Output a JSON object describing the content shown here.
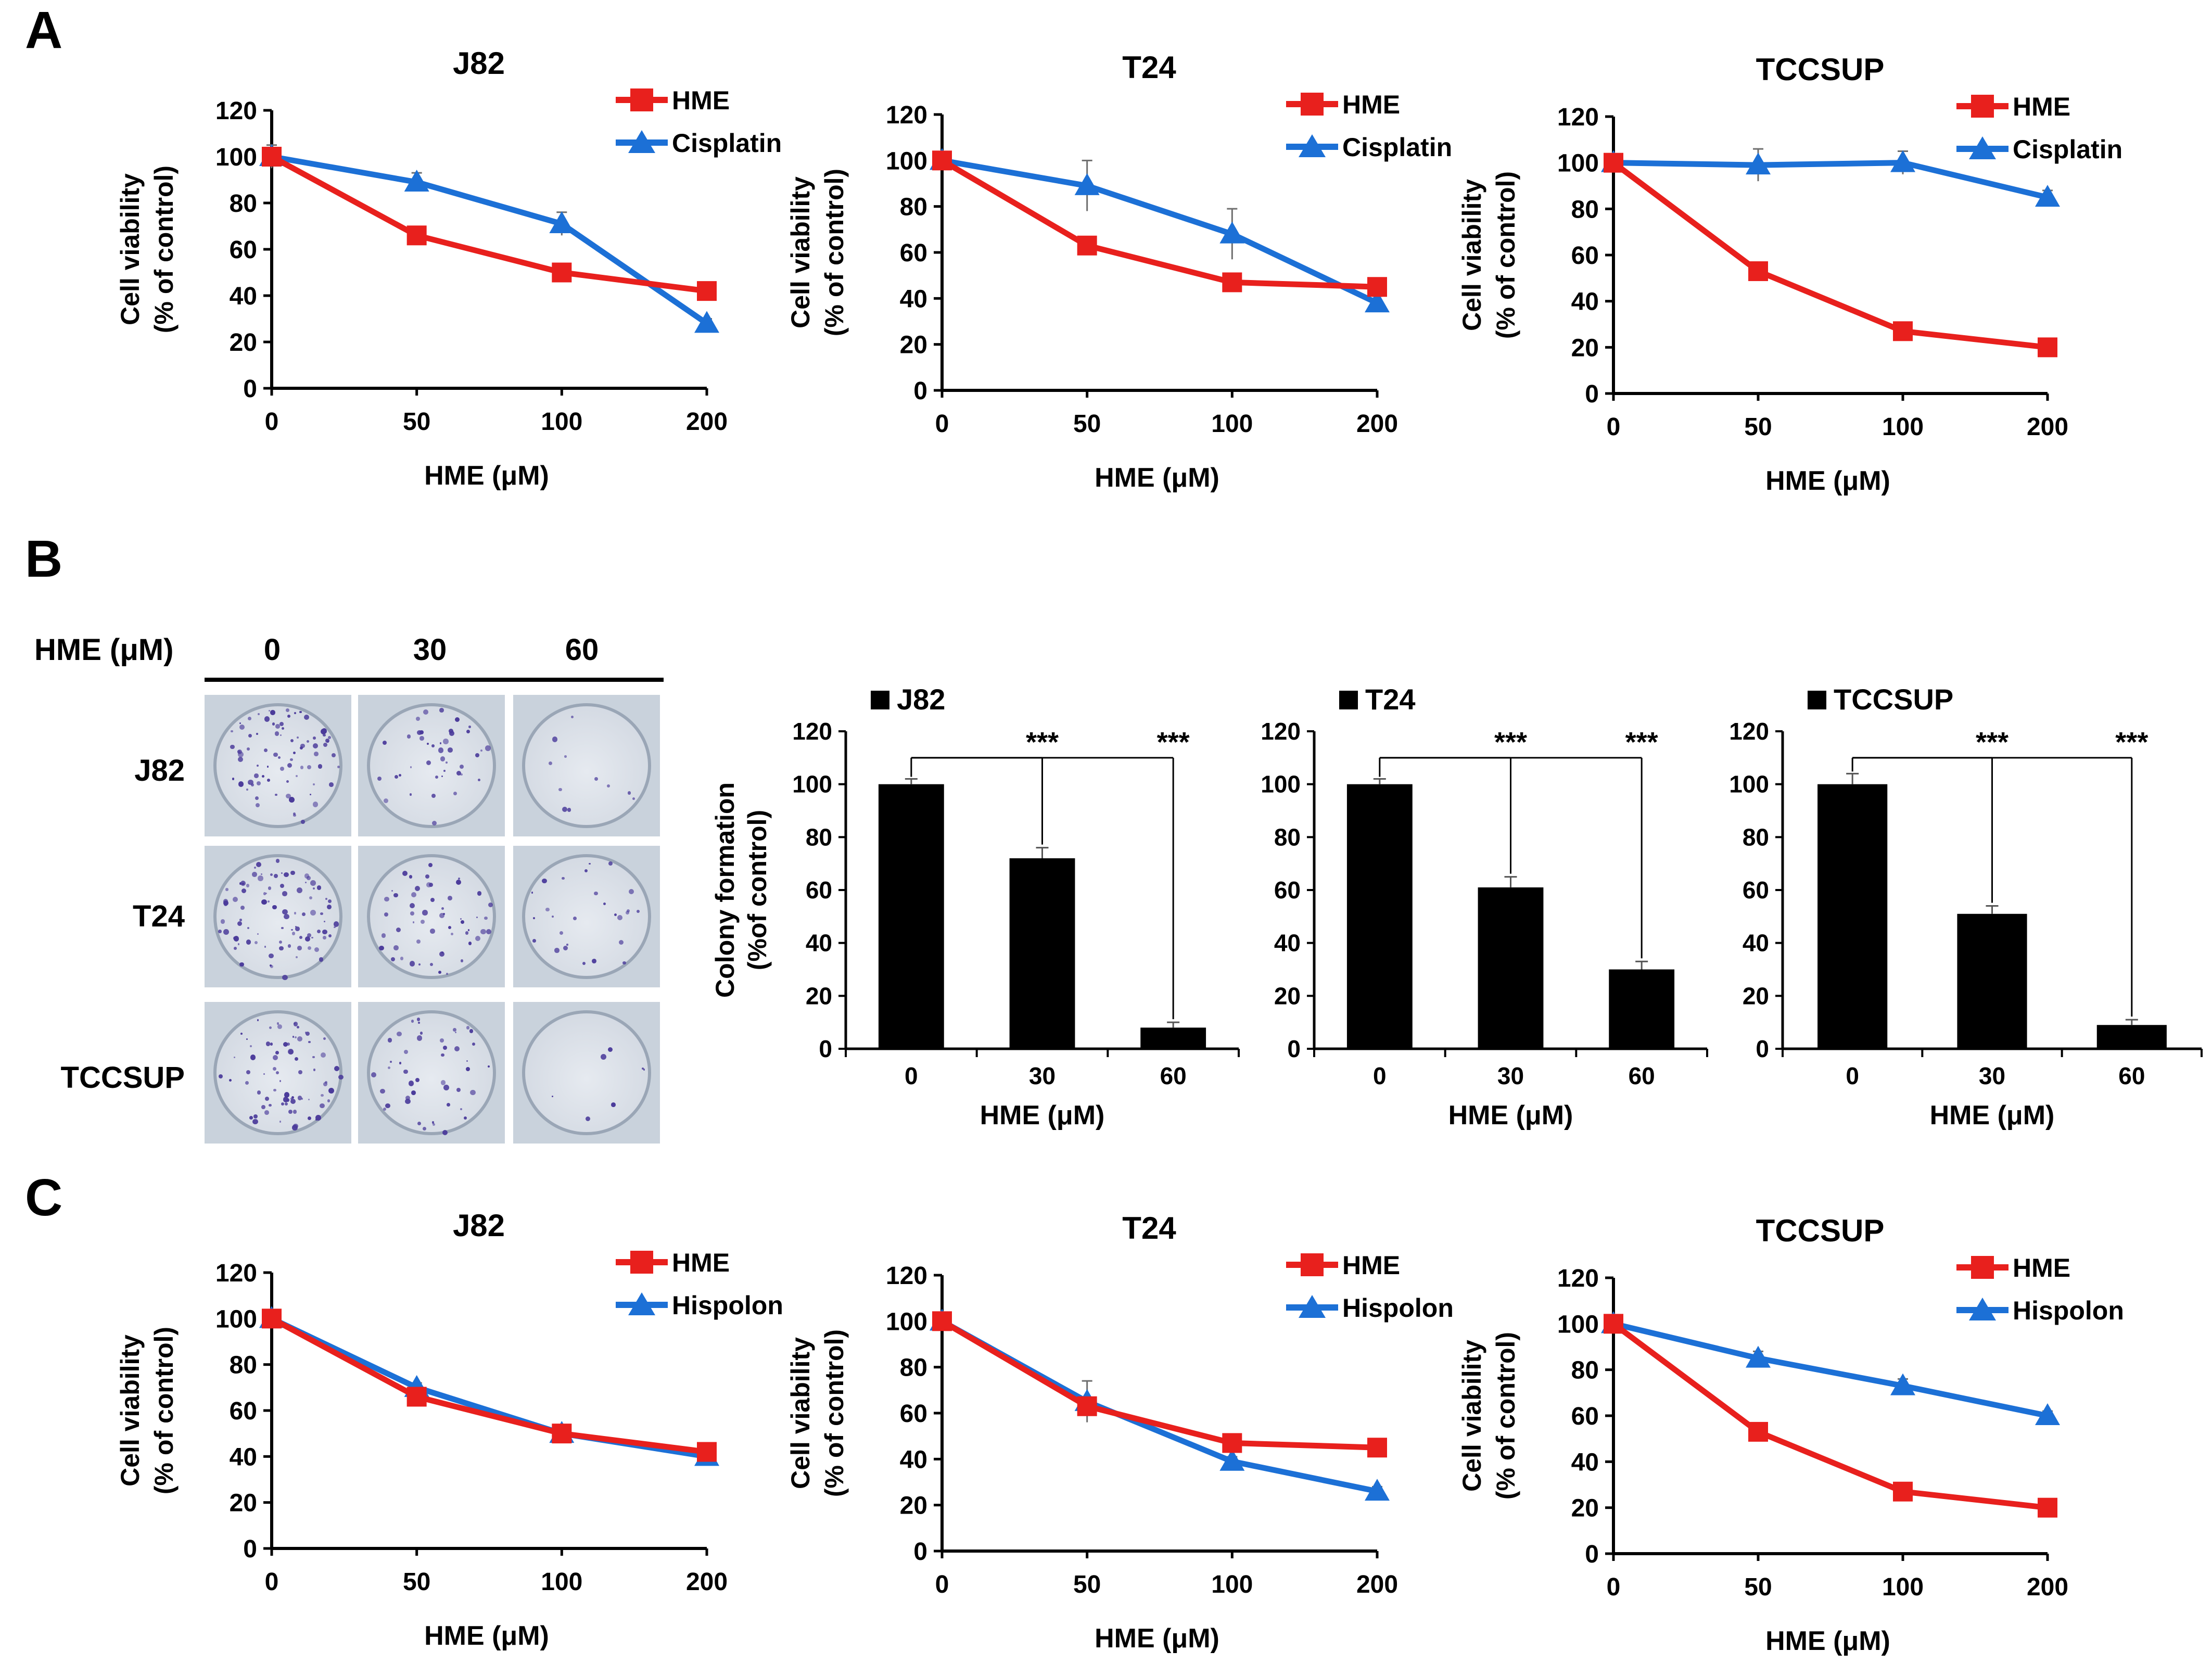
{
  "panel_labels": {
    "a": "A",
    "b": "B",
    "c": "C"
  },
  "colors": {
    "hme": "#e8201d",
    "compare": "#1c70d6",
    "bar": "#000000",
    "plate_bg": "#c9d2dc",
    "colony": "#4a3a9a"
  },
  "plates": {
    "header_label": "HME (μM)",
    "doses": [
      "0",
      "30",
      "60"
    ],
    "rows": [
      "J82",
      "T24",
      "TCCSUP"
    ],
    "colony_density": [
      [
        0.9,
        0.45,
        0.12
      ],
      [
        1.0,
        0.6,
        0.3
      ],
      [
        0.85,
        0.5,
        0.08
      ]
    ]
  },
  "chart_data": [
    {
      "id": "A1",
      "type": "line",
      "title": "J82",
      "x": [
        0,
        50,
        100,
        200
      ],
      "xlabel": "HME (μM)",
      "ylabel_lines": [
        "Cell viability",
        "(% of control)"
      ],
      "ylim": [
        0,
        120
      ],
      "yticks": [
        0,
        20,
        40,
        60,
        80,
        100,
        120
      ],
      "legend_position": "top-right",
      "series": [
        {
          "name": "HME",
          "marker": "square",
          "values": [
            100,
            66,
            50,
            42
          ],
          "errors": [
            2,
            2,
            2,
            2
          ]
        },
        {
          "name": "Cisplatin",
          "marker": "triangle",
          "values": [
            100,
            89,
            71,
            28
          ],
          "errors": [
            5,
            4,
            5,
            2
          ]
        }
      ]
    },
    {
      "id": "A2",
      "type": "line",
      "title": "T24",
      "x": [
        0,
        50,
        100,
        200
      ],
      "xlabel": "HME (μM)",
      "ylabel_lines": [
        "Cell viability",
        "(% of control)"
      ],
      "ylim": [
        0,
        120
      ],
      "yticks": [
        0,
        20,
        40,
        60,
        80,
        100,
        120
      ],
      "legend_position": "top-right",
      "series": [
        {
          "name": "HME",
          "marker": "square",
          "values": [
            100,
            63,
            47,
            45
          ],
          "errors": [
            2,
            3,
            2,
            2
          ]
        },
        {
          "name": "Cisplatin",
          "marker": "triangle",
          "values": [
            100,
            89,
            68,
            38
          ],
          "errors": [
            2,
            11,
            11,
            3
          ]
        }
      ]
    },
    {
      "id": "A3",
      "type": "line",
      "title": "TCCSUP",
      "x": [
        0,
        50,
        100,
        200
      ],
      "xlabel": "HME (μM)",
      "ylabel_lines": [
        "Cell viability",
        "(% of control)"
      ],
      "ylim": [
        0,
        120
      ],
      "yticks": [
        0,
        20,
        40,
        60,
        80,
        100,
        120
      ],
      "legend_position": "top-right",
      "series": [
        {
          "name": "HME",
          "marker": "square",
          "values": [
            100,
            53,
            27,
            20
          ],
          "errors": [
            2,
            2,
            2,
            2
          ]
        },
        {
          "name": "Cisplatin",
          "marker": "triangle",
          "values": [
            100,
            99,
            100,
            85
          ],
          "errors": [
            2,
            7,
            5,
            3
          ]
        }
      ]
    },
    {
      "id": "B1",
      "type": "bar",
      "legend": "J82",
      "categories": [
        "0",
        "30",
        "60"
      ],
      "values": [
        100,
        72,
        8
      ],
      "errors": [
        2,
        4,
        2
      ],
      "xlabel": "HME (μM)",
      "ylabel_lines": [
        "Colony formation",
        "(%of control)"
      ],
      "ylim": [
        0,
        120
      ],
      "yticks": [
        0,
        20,
        40,
        60,
        80,
        100,
        120
      ],
      "significance": [
        {
          "from": 0,
          "to": 1,
          "label": "***"
        },
        {
          "from": 0,
          "to": 2,
          "label": "***"
        }
      ]
    },
    {
      "id": "B2",
      "type": "bar",
      "legend": "T24",
      "categories": [
        "0",
        "30",
        "60"
      ],
      "values": [
        100,
        61,
        30
      ],
      "errors": [
        2,
        4,
        3
      ],
      "xlabel": "HME (μM)",
      "ylabel_lines": [],
      "ylim": [
        0,
        120
      ],
      "yticks": [
        0,
        20,
        40,
        60,
        80,
        100,
        120
      ],
      "significance": [
        {
          "from": 0,
          "to": 1,
          "label": "***"
        },
        {
          "from": 0,
          "to": 2,
          "label": "***"
        }
      ]
    },
    {
      "id": "B3",
      "type": "bar",
      "legend": "TCCSUP",
      "categories": [
        "0",
        "30",
        "60"
      ],
      "values": [
        100,
        51,
        9
      ],
      "errors": [
        4,
        3,
        2
      ],
      "xlabel": "HME (μM)",
      "ylabel_lines": [],
      "ylim": [
        0,
        120
      ],
      "yticks": [
        0,
        20,
        40,
        60,
        80,
        100,
        120
      ],
      "significance": [
        {
          "from": 0,
          "to": 1,
          "label": "***"
        },
        {
          "from": 0,
          "to": 2,
          "label": "***"
        }
      ]
    },
    {
      "id": "C1",
      "type": "line",
      "title": "J82",
      "x": [
        0,
        50,
        100,
        200
      ],
      "xlabel": "HME (μM)",
      "ylabel_lines": [
        "Cell viability",
        "(% of control)"
      ],
      "ylim": [
        0,
        120
      ],
      "yticks": [
        0,
        20,
        40,
        60,
        80,
        100,
        120
      ],
      "legend_position": "top-right",
      "series": [
        {
          "name": "HME",
          "marker": "square",
          "values": [
            100,
            66,
            50,
            42
          ],
          "errors": [
            2,
            2,
            2,
            2
          ]
        },
        {
          "name": "Hispolon",
          "marker": "triangle",
          "values": [
            100,
            70,
            50,
            40
          ],
          "errors": [
            2,
            2,
            2,
            2
          ]
        }
      ]
    },
    {
      "id": "C2",
      "type": "line",
      "title": "T24",
      "x": [
        0,
        50,
        100,
        200
      ],
      "xlabel": "HME (μM)",
      "ylabel_lines": [
        "Cell viability",
        "(% of control)"
      ],
      "ylim": [
        0,
        120
      ],
      "yticks": [
        0,
        20,
        40,
        60,
        80,
        100,
        120
      ],
      "legend_position": "top-right",
      "series": [
        {
          "name": "HME",
          "marker": "square",
          "values": [
            100,
            63,
            47,
            45
          ],
          "errors": [
            2,
            2,
            2,
            2
          ]
        },
        {
          "name": "Hispolon",
          "marker": "triangle",
          "values": [
            100,
            65,
            39,
            26
          ],
          "errors": [
            2,
            9,
            2,
            2
          ]
        }
      ]
    },
    {
      "id": "C3",
      "type": "line",
      "title": "TCCSUP",
      "x": [
        0,
        50,
        100,
        200
      ],
      "xlabel": "HME (μM)",
      "ylabel_lines": [
        "Cell viability",
        "(% of control)"
      ],
      "ylim": [
        0,
        120
      ],
      "yticks": [
        0,
        20,
        40,
        60,
        80,
        100,
        120
      ],
      "legend_position": "top-right",
      "series": [
        {
          "name": "HME",
          "marker": "square",
          "values": [
            100,
            53,
            27,
            20
          ],
          "errors": [
            2,
            2,
            2,
            2
          ]
        },
        {
          "name": "Hispolon",
          "marker": "triangle",
          "values": [
            100,
            85,
            73,
            60
          ],
          "errors": [
            2,
            3,
            3,
            2
          ]
        }
      ]
    }
  ]
}
